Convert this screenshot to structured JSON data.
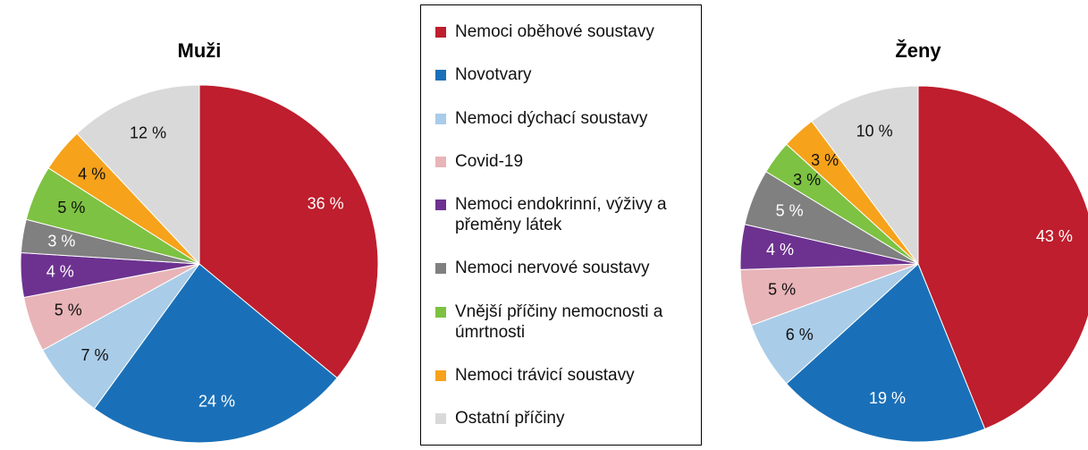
{
  "chart_data": [
    {
      "type": "pie",
      "title": "Muži",
      "categories": [
        "Nemoci oběhové soustavy",
        "Novotvary",
        "Nemoci dýchací soustavy",
        "Covid-19",
        "Nemoci endokrinní, výživy a přeměny látek",
        "Nemoci nervové soustavy",
        "Vnější příčiny nemocnosti a úmrtnosti",
        "Nemoci trávicí soustavy",
        "Ostatní příčiny"
      ],
      "values": [
        36,
        24,
        7,
        5,
        4,
        3,
        5,
        4,
        12
      ],
      "value_labels": [
        "36 %",
        "24 %",
        "7 %",
        "5 %",
        "4 %",
        "3 %",
        "5 %",
        "4 %",
        "12 %"
      ],
      "colors": [
        "#be1e2d",
        "#1a70b8",
        "#a9cce8",
        "#e8b4b8",
        "#6d3290",
        "#808080",
        "#7dc242",
        "#f7a21b",
        "#d9d9d9"
      ]
    },
    {
      "type": "pie",
      "title": "Ženy",
      "categories": [
        "Nemoci oběhové soustavy",
        "Novotvary",
        "Nemoci dýchací soustavy",
        "Covid-19",
        "Nemoci endokrinní, výživy a přeměny látek",
        "Nemoci nervové soustavy",
        "Vnější příčiny nemocnosti a úmrtnosti",
        "Nemoci trávicí soustavy",
        "Ostatní příčiny"
      ],
      "values": [
        43,
        19,
        6,
        5,
        4,
        5,
        3,
        3,
        10
      ],
      "value_labels": [
        "43 %",
        "19 %",
        "6 %",
        "5 %",
        "4 %",
        "5 %",
        "3 %",
        "3 %",
        "10 %"
      ],
      "colors": [
        "#be1e2d",
        "#1a70b8",
        "#a9cce8",
        "#e8b4b8",
        "#6d3290",
        "#808080",
        "#7dc242",
        "#f7a21b",
        "#d9d9d9"
      ]
    }
  ]
}
